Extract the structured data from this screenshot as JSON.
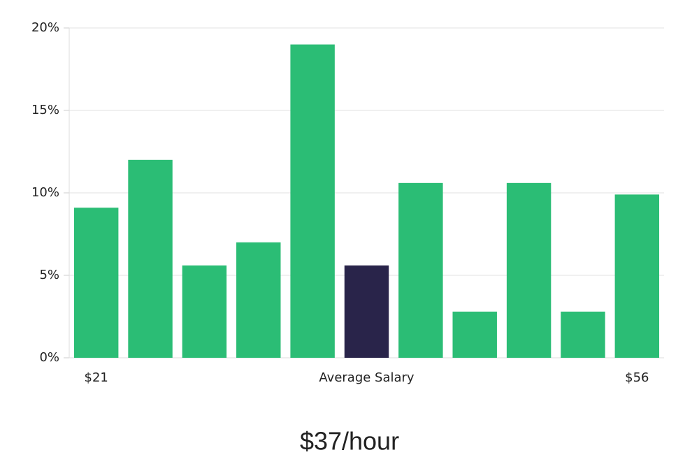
{
  "chart_data": {
    "type": "bar",
    "categories": [
      "$21",
      null,
      null,
      null,
      null,
      "Average Salary",
      null,
      null,
      null,
      null,
      "$56"
    ],
    "values": [
      9.1,
      12.0,
      5.6,
      7.0,
      19.0,
      5.6,
      10.6,
      2.8,
      10.6,
      2.8,
      9.9
    ],
    "colors": [
      "#2bbd75",
      "#2bbd75",
      "#2bbd75",
      "#2bbd75",
      "#2bbd75",
      "#29244a",
      "#2bbd75",
      "#2bbd75",
      "#2bbd75",
      "#2bbd75",
      "#2bbd75"
    ],
    "ylim": [
      0,
      20
    ],
    "yticks": [
      {
        "value": 0,
        "label": "0%"
      },
      {
        "value": 5,
        "label": "5%"
      },
      {
        "value": 10,
        "label": "10%"
      },
      {
        "value": 15,
        "label": "15%"
      },
      {
        "value": 20,
        "label": "20%"
      }
    ],
    "grid": true,
    "annotation": "$37/hour"
  }
}
